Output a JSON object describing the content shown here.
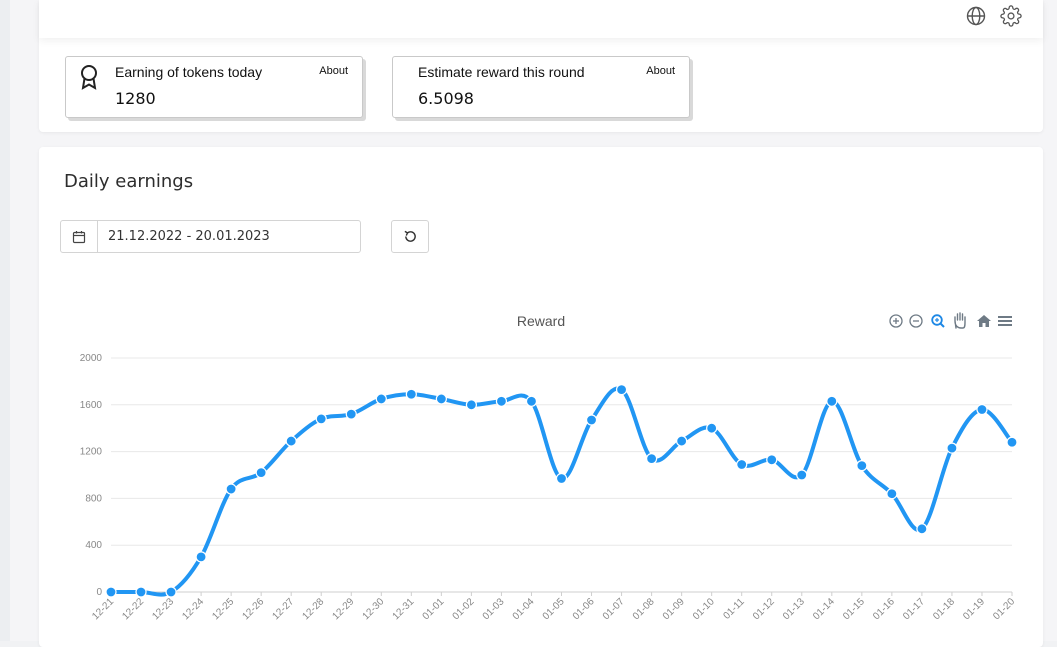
{
  "toolbar": {
    "icons": [
      "globe-icon",
      "gear-icon"
    ]
  },
  "stats": {
    "tokens_today": {
      "title": "Earning of tokens today",
      "about": "About",
      "value": "1280",
      "icon": "award-icon"
    },
    "estimate_reward": {
      "title": "Estimate reward this round",
      "about": "About",
      "value": "6.5098"
    }
  },
  "daily": {
    "title": "Daily earnings",
    "date_range": "21.12.2022 - 20.01.2023",
    "calendar_icon": "calendar-icon",
    "reset_icon": "refresh-icon"
  },
  "chart_toolbar": [
    "zoom-in-icon",
    "zoom-out-icon",
    "selection-zoom-icon",
    "pan-icon",
    "reset-zoom-home-icon",
    "menu-icon"
  ],
  "colors": {
    "series": "#2196f3",
    "grid": "#e8e8e8",
    "toolbar_active": "#1e88e5",
    "toolbar": "#6e7a85"
  },
  "chart_data": {
    "type": "line",
    "title": "Reward",
    "x": [
      "12-21",
      "12-22",
      "12-23",
      "12-24",
      "12-25",
      "12-26",
      "12-27",
      "12-28",
      "12-29",
      "12-30",
      "12-31",
      "01-01",
      "01-02",
      "01-03",
      "01-04",
      "01-05",
      "01-06",
      "01-07",
      "01-08",
      "01-09",
      "01-10",
      "01-11",
      "01-12",
      "01-13",
      "01-14",
      "01-15",
      "01-16",
      "01-17",
      "01-18",
      "01-19",
      "01-20"
    ],
    "series": [
      {
        "values": [
          0,
          0,
          0,
          300,
          880,
          1020,
          1290,
          1480,
          1520,
          1650,
          1690,
          1650,
          1600,
          1630,
          1630,
          970,
          1470,
          1730,
          1140,
          1290,
          1400,
          1090,
          1130,
          1000,
          1630,
          1080,
          840,
          540,
          1230,
          1560,
          1280
        ]
      }
    ],
    "ylim": [
      0,
      2000
    ],
    "yticks": [
      0,
      400,
      800,
      1200,
      1600,
      2000
    ],
    "xlabel": "",
    "ylabel": "",
    "grid": true,
    "legend": "none"
  }
}
